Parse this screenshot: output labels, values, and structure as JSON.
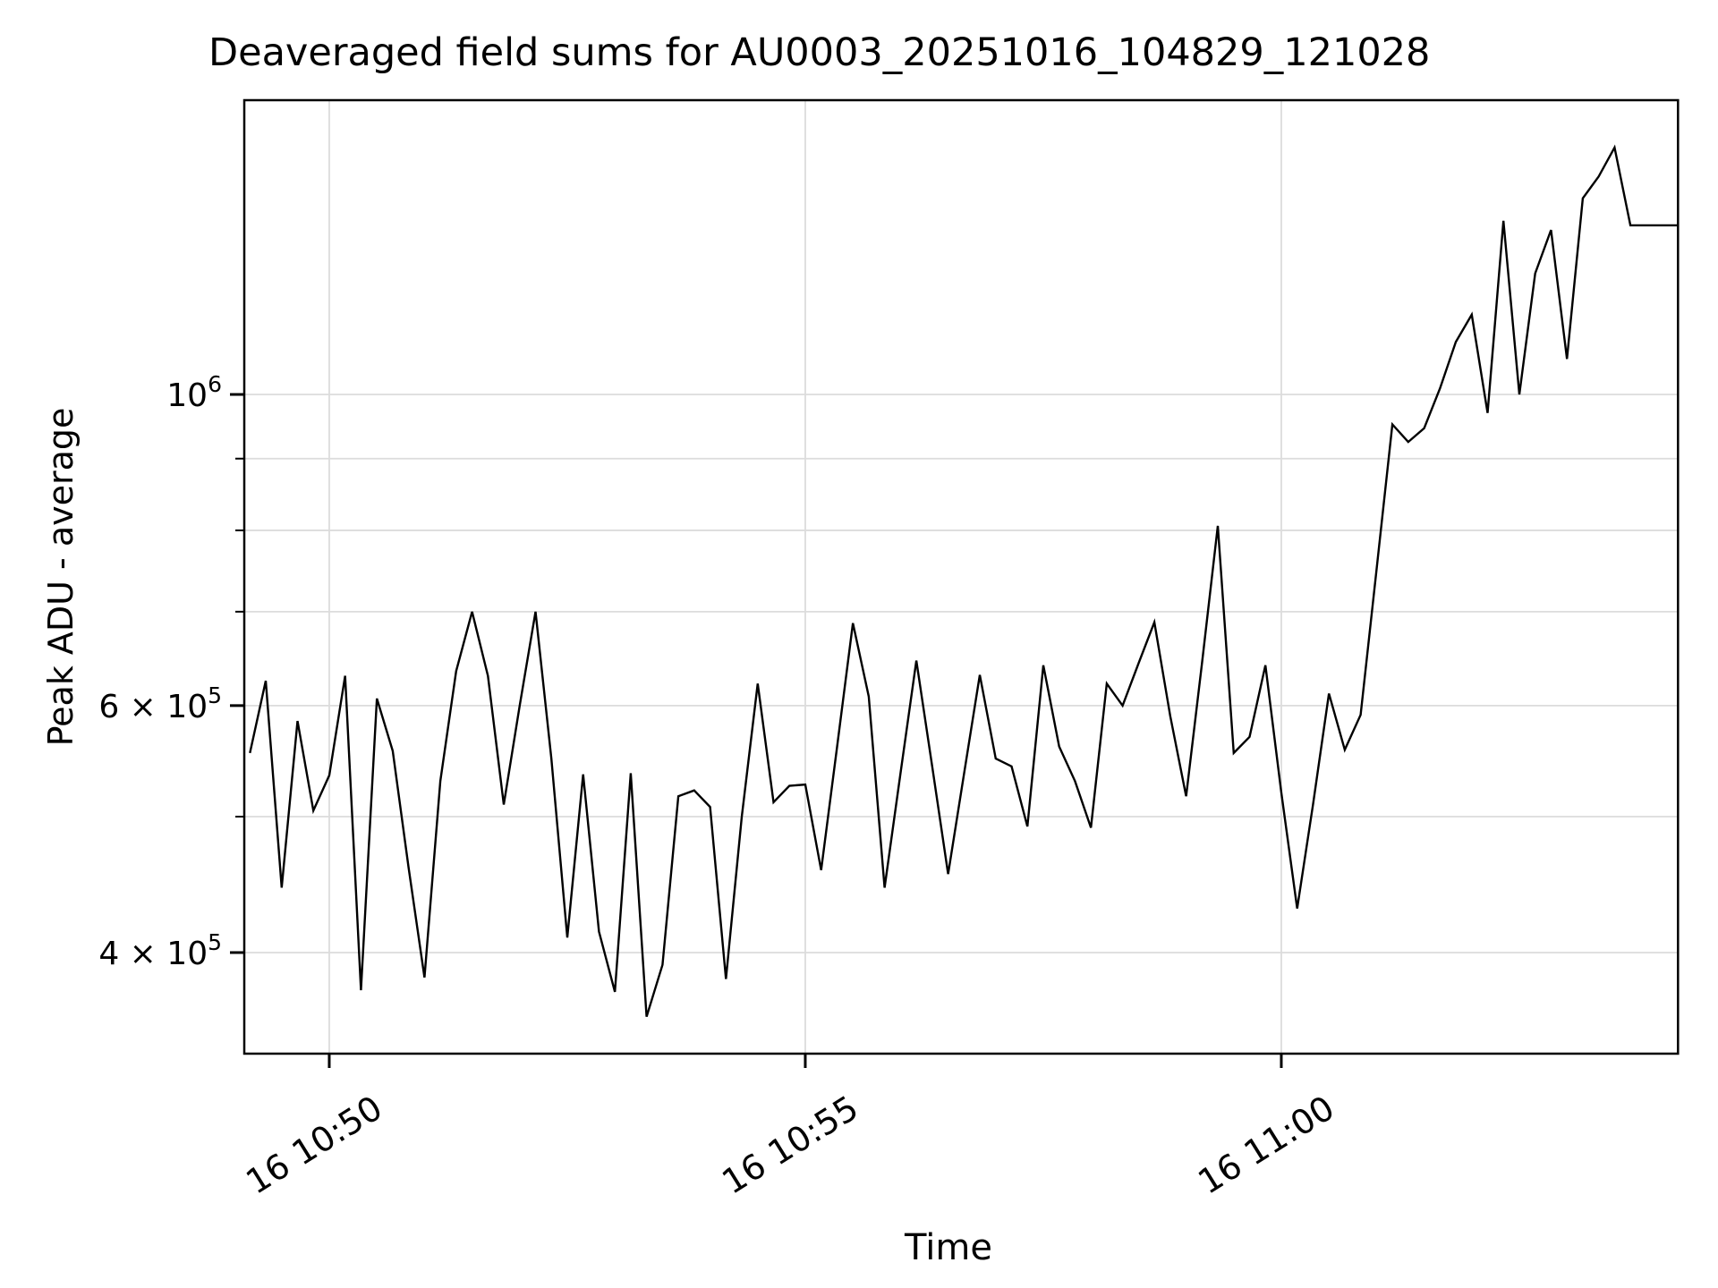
{
  "page": {
    "background": "#ffffff"
  },
  "chart_data": {
    "type": "line",
    "title": "Deaveraged field sums for AU0003_20251016_104829_121028",
    "xlabel": "Time",
    "ylabel": "Peak ADU - average",
    "yscale": "log",
    "grid": true,
    "grid_color": "#dcdcdc",
    "line_color": "#000000",
    "axes_color": "#000000",
    "legend": "none",
    "x_tick_labels": [
      "16 10:50",
      "16 10:55",
      "16 11:00"
    ],
    "x_tick_times": [
      "10:50:00",
      "10:55:00",
      "11:00:00"
    ],
    "y_major_ticks": [
      {
        "value": 1000000,
        "base": "10",
        "exp": "6"
      },
      {
        "value": 600000,
        "base": "6 × 10",
        "exp": "5"
      },
      {
        "value": 400000,
        "base": "4 × 10",
        "exp": "5"
      }
    ],
    "y_minor_tick_values": [
      900000,
      800000,
      700000,
      500000
    ],
    "x_range": [
      "10:49:06",
      "11:04:10"
    ],
    "y_range": [
      339000,
      1620000
    ],
    "series": [
      {
        "name": "peak-adu-average",
        "x": [
          "10:49:10",
          "10:49:20",
          "10:49:30",
          "10:49:40",
          "10:49:50",
          "10:50:00",
          "10:50:10",
          "10:50:20",
          "10:50:30",
          "10:50:40",
          "10:50:50",
          "10:51:00",
          "10:51:10",
          "10:51:20",
          "10:51:30",
          "10:51:40",
          "10:51:50",
          "10:52:00",
          "10:52:10",
          "10:52:20",
          "10:52:30",
          "10:52:40",
          "10:52:50",
          "10:53:00",
          "10:53:10",
          "10:53:20",
          "10:53:30",
          "10:53:40",
          "10:53:50",
          "10:54:00",
          "10:54:10",
          "10:54:20",
          "10:54:30",
          "10:54:40",
          "10:54:50",
          "10:55:00",
          "10:55:10",
          "10:55:20",
          "10:55:30",
          "10:55:40",
          "10:55:50",
          "10:56:00",
          "10:56:10",
          "10:56:20",
          "10:56:30",
          "10:56:40",
          "10:56:50",
          "10:57:00",
          "10:57:10",
          "10:57:20",
          "10:57:30",
          "10:57:40",
          "10:57:50",
          "10:58:00",
          "10:58:10",
          "10:58:20",
          "10:58:30",
          "10:58:40",
          "10:58:50",
          "10:59:00",
          "10:59:10",
          "10:59:20",
          "10:59:30",
          "10:59:40",
          "10:59:50",
          "11:00:00",
          "11:00:10",
          "11:00:20",
          "11:00:30",
          "11:00:40",
          "11:00:50",
          "11:01:00",
          "11:01:10",
          "11:01:20",
          "11:01:30",
          "11:01:40",
          "11:01:50",
          "11:02:00",
          "11:02:10",
          "11:02:20",
          "11:02:30",
          "11:02:40",
          "11:02:50",
          "11:03:00",
          "11:03:10",
          "11:03:20",
          "11:03:30",
          "11:03:40",
          "11:03:50",
          "11:04:00",
          "11:04:10"
        ],
        "values": [
          555000,
          625000,
          445000,
          585000,
          505000,
          535000,
          630000,
          376000,
          607000,
          557000,
          460000,
          384000,
          530000,
          635000,
          700000,
          630000,
          510000,
          600000,
          700000,
          550000,
          410000,
          536000,
          414000,
          375000,
          537000,
          360000,
          392000,
          517000,
          522000,
          508000,
          383000,
          500000,
          622000,
          512000,
          526000,
          527000,
          458000,
          560000,
          687000,
          609000,
          445000,
          537000,
          646000,
          543000,
          455000,
          536000,
          631000,
          550000,
          543000,
          492000,
          641000,
          561000,
          530000,
          491000,
          622000,
          600000,
          643000,
          688000,
          590000,
          517000,
          643000,
          806000,
          555000,
          570000,
          641000,
          520000,
          430000,
          510000,
          612000,
          558000,
          591000,
          750000,
          952000,
          925000,
          946000,
          1010000,
          1090000,
          1140000,
          970000,
          1330000,
          1000000,
          1220000,
          1310000,
          1060000,
          1380000,
          1430000,
          1500000,
          1320000,
          1320000,
          1320000,
          1320000
        ]
      }
    ]
  }
}
